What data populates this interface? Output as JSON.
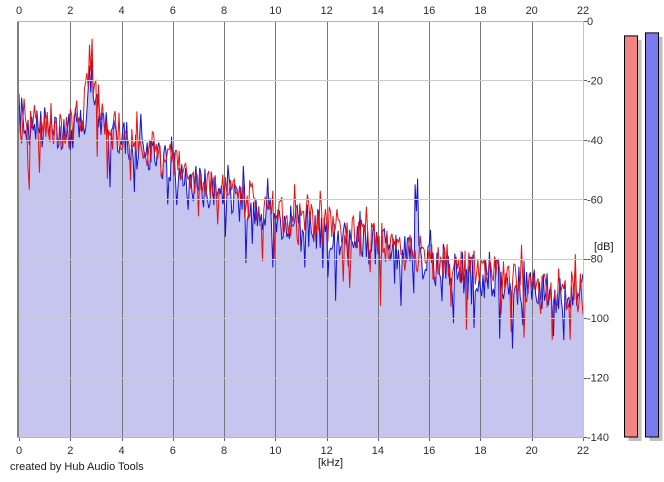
{
  "window": {
    "footer_credit": "created by Hub Audio Tools"
  },
  "chart_data": {
    "type": "line",
    "title": "",
    "xlabel": "[kHz]",
    "ylabel": "[dB]",
    "xlim": [
      0,
      22
    ],
    "ylim": [
      -140,
      0
    ],
    "grid": true,
    "legend": "none",
    "x_ticks": [
      "0",
      "2",
      "4",
      "6",
      "8",
      "10",
      "12",
      "14",
      "16",
      "18",
      "20",
      "22"
    ],
    "y_ticks": [
      "0",
      "-20",
      "-40",
      "-60",
      "-80",
      "-100",
      "-120",
      "-140"
    ],
    "fill_color": "#c5c5f0",
    "colors": {
      "grid_vertical": "#787878",
      "grid_horizontal": "#cbcbcb",
      "border_dark": "#808080",
      "border_light": "#b5b5b5",
      "tick": "#606060",
      "text": "#2e2e2e"
    },
    "series": [
      {
        "name": "spectrum-trace-red",
        "color": "#e81212",
        "fill": false,
        "noise_db": 7,
        "seed": 101,
        "envelope_x": [
          0,
          0.2,
          0.6,
          1.0,
          1.5,
          2.0,
          2.5,
          2.8,
          3.2,
          3.6,
          4.0,
          5.0,
          6.0,
          7.0,
          8.0,
          9.0,
          10,
          11,
          12,
          13,
          14,
          15,
          16,
          17,
          18,
          19,
          20,
          21,
          22
        ],
        "envelope_db": [
          -36,
          -33,
          -35,
          -34,
          -36,
          -36,
          -30,
          -21,
          -30,
          -34,
          -37,
          -43,
          -48,
          -53,
          -57,
          -61,
          -64,
          -67,
          -69,
          -72,
          -74,
          -77,
          -80,
          -82,
          -84,
          -86,
          -88,
          -90,
          -92
        ],
        "spikes": [
          {
            "x": 2.8,
            "db": -17
          }
        ]
      },
      {
        "name": "spectrum-trace-blue",
        "color": "#1515cd",
        "fill": true,
        "noise_db": 7,
        "seed": 202,
        "envelope_x": [
          0,
          0.2,
          0.6,
          1.0,
          1.5,
          2.0,
          2.5,
          2.8,
          3.2,
          3.6,
          4.0,
          5.0,
          6.0,
          7.0,
          8.0,
          9.0,
          10,
          11,
          12,
          13,
          14,
          15,
          16,
          17,
          18,
          19,
          20,
          21,
          22
        ],
        "envelope_db": [
          -30,
          -35,
          -36,
          -36,
          -38,
          -38,
          -33,
          -26,
          -33,
          -37,
          -40,
          -45,
          -50,
          -55,
          -59,
          -63,
          -66,
          -69,
          -71,
          -74,
          -76,
          -79,
          -82,
          -84,
          -86,
          -88,
          -90,
          -92,
          -94
        ],
        "spikes": [
          {
            "x": 2.8,
            "db": -24
          },
          {
            "x": 15.5,
            "db": -64
          }
        ]
      }
    ],
    "meters": [
      {
        "name": "level-meter-red",
        "level_db": -5,
        "fill": "#f28484"
      },
      {
        "name": "level-meter-blue",
        "level_db": -4,
        "fill": "#7b7bef"
      }
    ],
    "meter_shadow": "#c2beba",
    "meter_border": "#000000"
  }
}
